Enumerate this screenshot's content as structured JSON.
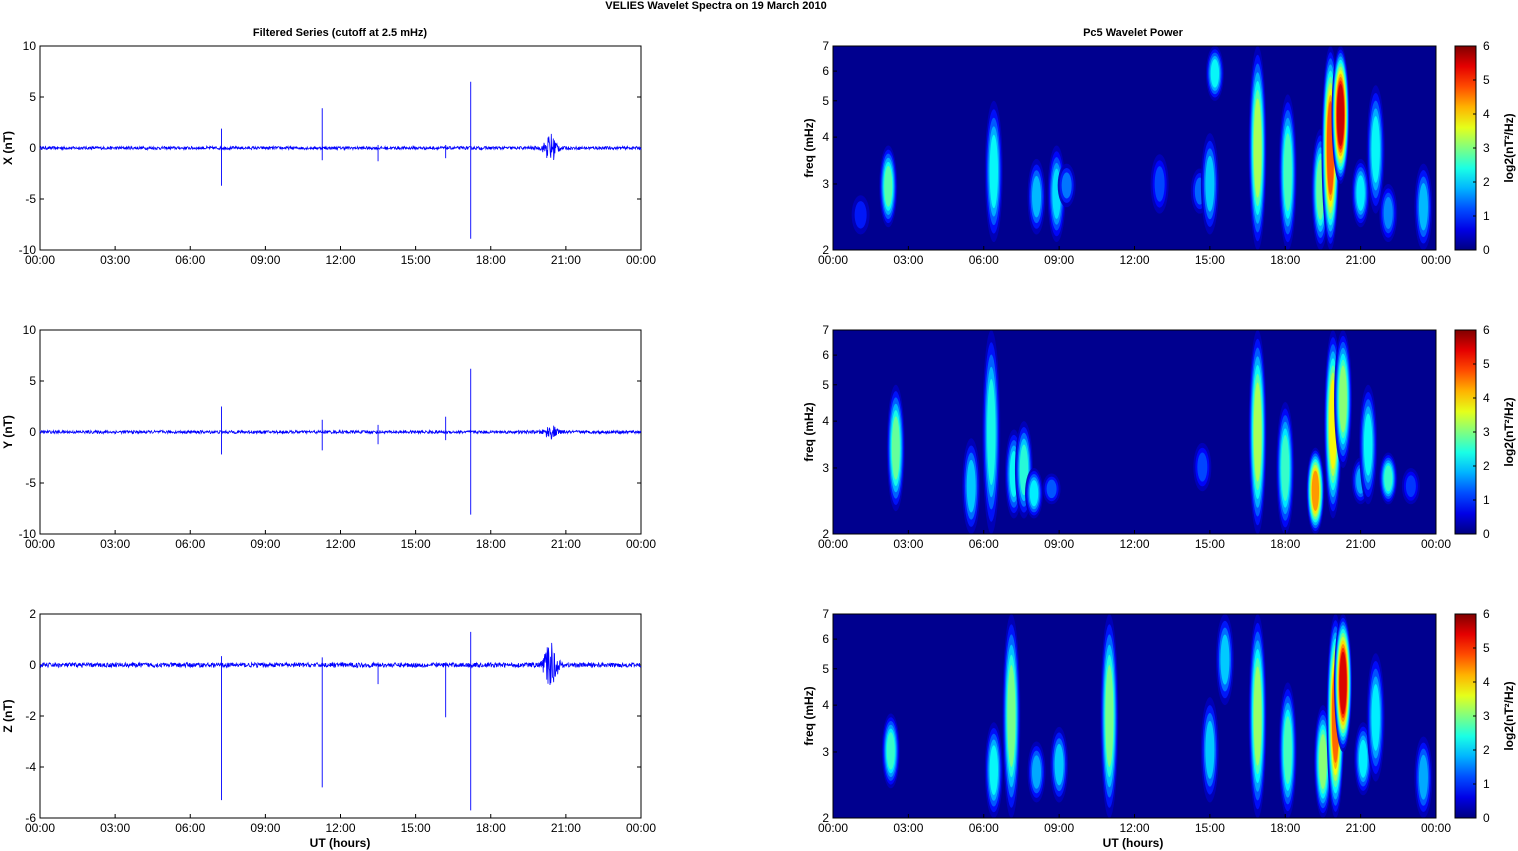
{
  "figure": {
    "title": "VELIES Wavelet Spectra on 19 March     2010",
    "left_title": "Filtered Series (cutoff at 2.5 mHz)",
    "right_title": "Pc5 Wavelet Power",
    "xlabel": "UT (hours)"
  },
  "colors": {
    "trace": "#0000ff",
    "background_low": "#00008f",
    "axis": "#000000"
  },
  "chart_data": [
    {
      "type": "line",
      "ylabel": "X (nT)",
      "xlim": [
        0,
        24
      ],
      "ylim": [
        -10,
        10
      ],
      "yticks": [
        -10,
        -5,
        0,
        5,
        10
      ],
      "xtick_labels": [
        "00:00",
        "03:00",
        "06:00",
        "09:00",
        "12:00",
        "15:00",
        "18:00",
        "21:00",
        "00:00"
      ],
      "noise_amplitude": 0.15,
      "spikes": [
        {
          "t": 7.25,
          "hi": 1.9,
          "lo": -3.7
        },
        {
          "t": 11.27,
          "hi": 3.9,
          "lo": -1.2
        },
        {
          "t": 13.5,
          "hi": 0.3,
          "lo": -1.3
        },
        {
          "t": 16.2,
          "hi": 0.3,
          "lo": -1.0
        },
        {
          "t": 17.2,
          "hi": 6.5,
          "lo": -8.9
        }
      ],
      "bursts": [
        {
          "t": 20.4,
          "amplitude": 1.4
        }
      ]
    },
    {
      "type": "line",
      "ylabel": "Y (nT)",
      "xlim": [
        0,
        24
      ],
      "ylim": [
        -10,
        10
      ],
      "yticks": [
        -10,
        -5,
        0,
        5,
        10
      ],
      "xtick_labels": [
        "00:00",
        "03:00",
        "06:00",
        "09:00",
        "12:00",
        "15:00",
        "18:00",
        "21:00",
        "00:00"
      ],
      "noise_amplitude": 0.15,
      "spikes": [
        {
          "t": 7.25,
          "hi": 2.5,
          "lo": -2.2
        },
        {
          "t": 11.27,
          "hi": 1.2,
          "lo": -1.8
        },
        {
          "t": 13.5,
          "hi": 0.7,
          "lo": -1.2
        },
        {
          "t": 16.2,
          "hi": 1.5,
          "lo": -0.8
        },
        {
          "t": 17.2,
          "hi": 6.2,
          "lo": -8.1
        }
      ],
      "bursts": [
        {
          "t": 20.4,
          "amplitude": 0.6
        }
      ]
    },
    {
      "type": "line",
      "ylabel": "Z (nT)",
      "xlim": [
        0,
        24
      ],
      "ylim": [
        -6,
        2
      ],
      "yticks": [
        -6,
        -4,
        -2,
        0,
        2
      ],
      "xtick_labels": [
        "00:00",
        "03:00",
        "06:00",
        "09:00",
        "12:00",
        "15:00",
        "18:00",
        "21:00",
        "00:00"
      ],
      "noise_amplitude": 0.09,
      "spikes": [
        {
          "t": 7.25,
          "hi": 0.35,
          "lo": -5.3
        },
        {
          "t": 11.27,
          "hi": 0.3,
          "lo": -4.8
        },
        {
          "t": 13.5,
          "hi": 0.1,
          "lo": -0.75
        },
        {
          "t": 16.2,
          "hi": 0.1,
          "lo": -2.05
        },
        {
          "t": 17.2,
          "hi": 1.3,
          "lo": -5.7
        }
      ],
      "bursts": [
        {
          "t": 20.4,
          "amplitude": 0.9
        }
      ]
    },
    {
      "type": "heatmap",
      "ylabel": "freq (mHz)",
      "xlim": [
        0,
        24
      ],
      "ylim": [
        2,
        7
      ],
      "yscale": "log",
      "yticks": [
        2,
        3,
        4,
        5,
        6,
        7
      ],
      "xtick_labels": [
        "00:00",
        "03:00",
        "06:00",
        "09:00",
        "12:00",
        "15:00",
        "18:00",
        "21:00",
        "00:00"
      ],
      "colorbar": {
        "label": "log2(nT²/Hz)",
        "range": [
          0,
          6
        ],
        "ticks": [
          0,
          1,
          2,
          3,
          4,
          5,
          6
        ]
      },
      "blobs": [
        {
          "t": 2.2,
          "f0": 2.3,
          "f1": 3.8,
          "peak": 2.8
        },
        {
          "t": 1.1,
          "f0": 2.2,
          "f1": 2.8,
          "peak": 0.9
        },
        {
          "t": 6.4,
          "f0": 2.1,
          "f1": 5.0,
          "peak": 2.3
        },
        {
          "t": 8.1,
          "f0": 2.2,
          "f1": 3.5,
          "peak": 1.9
        },
        {
          "t": 8.9,
          "f0": 2.1,
          "f1": 3.8,
          "peak": 2.1
        },
        {
          "t": 9.3,
          "f0": 2.6,
          "f1": 3.4,
          "peak": 1.5
        },
        {
          "t": 13.0,
          "f0": 2.5,
          "f1": 3.6,
          "peak": 1.2
        },
        {
          "t": 14.6,
          "f0": 2.5,
          "f1": 3.3,
          "peak": 1.4
        },
        {
          "t": 15.0,
          "f0": 2.2,
          "f1": 4.1,
          "peak": 2.0
        },
        {
          "t": 15.2,
          "f0": 5.0,
          "f1": 7.0,
          "peak": 2.3
        },
        {
          "t": 16.9,
          "f0": 2.0,
          "f1": 7.0,
          "peak": 3.3
        },
        {
          "t": 18.1,
          "f0": 2.0,
          "f1": 5.2,
          "peak": 2.7
        },
        {
          "t": 19.4,
          "f0": 2.0,
          "f1": 4.2,
          "peak": 2.9
        },
        {
          "t": 19.8,
          "f0": 2.0,
          "f1": 7.0,
          "peak": 4.8
        },
        {
          "t": 20.2,
          "f0": 3.0,
          "f1": 7.0,
          "peak": 5.6
        },
        {
          "t": 21.0,
          "f0": 2.3,
          "f1": 3.5,
          "peak": 2.2
        },
        {
          "t": 21.6,
          "f0": 2.5,
          "f1": 5.5,
          "peak": 2.3
        },
        {
          "t": 22.1,
          "f0": 2.1,
          "f1": 3.0,
          "peak": 1.6
        },
        {
          "t": 23.5,
          "f0": 2.0,
          "f1": 3.4,
          "peak": 1.9
        }
      ]
    },
    {
      "type": "heatmap",
      "ylabel": "freq (mHz)",
      "xlim": [
        0,
        24
      ],
      "ylim": [
        2,
        7
      ],
      "yscale": "log",
      "yticks": [
        2,
        3,
        4,
        5,
        6,
        7
      ],
      "xtick_labels": [
        "00:00",
        "03:00",
        "06:00",
        "09:00",
        "12:00",
        "15:00",
        "18:00",
        "21:00",
        "00:00"
      ],
      "colorbar": {
        "label": "log2(nT²/Hz)",
        "range": [
          0,
          6
        ],
        "ticks": [
          0,
          1,
          2,
          3,
          4,
          5,
          6
        ]
      },
      "blobs": [
        {
          "t": 2.5,
          "f0": 2.3,
          "f1": 5.0,
          "peak": 2.9
        },
        {
          "t": 5.5,
          "f0": 2.0,
          "f1": 3.6,
          "peak": 2.0
        },
        {
          "t": 6.3,
          "f0": 2.0,
          "f1": 7.0,
          "peak": 2.4
        },
        {
          "t": 7.2,
          "f0": 2.2,
          "f1": 3.8,
          "peak": 2.3
        },
        {
          "t": 7.6,
          "f0": 2.2,
          "f1": 4.0,
          "peak": 2.5
        },
        {
          "t": 8.0,
          "f0": 2.2,
          "f1": 3.0,
          "peak": 2.2
        },
        {
          "t": 8.7,
          "f0": 2.4,
          "f1": 2.9,
          "peak": 1.3
        },
        {
          "t": 14.7,
          "f0": 2.6,
          "f1": 3.5,
          "peak": 1.2
        },
        {
          "t": 16.9,
          "f0": 2.0,
          "f1": 7.0,
          "peak": 3.3
        },
        {
          "t": 18.0,
          "f0": 2.0,
          "f1": 4.5,
          "peak": 2.6
        },
        {
          "t": 19.2,
          "f0": 2.0,
          "f1": 3.4,
          "peak": 4.4
        },
        {
          "t": 19.9,
          "f0": 2.2,
          "f1": 7.0,
          "peak": 3.8
        },
        {
          "t": 20.3,
          "f0": 3.0,
          "f1": 7.0,
          "peak": 3.1
        },
        {
          "t": 21.0,
          "f0": 2.4,
          "f1": 3.2,
          "peak": 1.8
        },
        {
          "t": 21.3,
          "f0": 2.4,
          "f1": 5.0,
          "peak": 2.3
        },
        {
          "t": 22.1,
          "f0": 2.4,
          "f1": 3.3,
          "peak": 2.6
        },
        {
          "t": 23.0,
          "f0": 2.4,
          "f1": 3.0,
          "peak": 1.1
        }
      ]
    },
    {
      "type": "heatmap",
      "ylabel": "freq (mHz)",
      "xlim": [
        0,
        24
      ],
      "ylim": [
        2,
        7
      ],
      "yscale": "log",
      "yticks": [
        2,
        3,
        4,
        5,
        6,
        7
      ],
      "xtick_labels": [
        "00:00",
        "03:00",
        "06:00",
        "09:00",
        "12:00",
        "15:00",
        "18:00",
        "21:00",
        "00:00"
      ],
      "colorbar": {
        "label": "log2(nT²/Hz)",
        "range": [
          0,
          6
        ],
        "ticks": [
          0,
          1,
          2,
          3,
          4,
          5,
          6
        ]
      },
      "blobs": [
        {
          "t": 2.3,
          "f0": 2.4,
          "f1": 3.8,
          "peak": 2.6
        },
        {
          "t": 6.4,
          "f0": 2.0,
          "f1": 3.6,
          "peak": 2.3
        },
        {
          "t": 7.1,
          "f0": 2.0,
          "f1": 7.0,
          "peak": 3.0
        },
        {
          "t": 11.0,
          "f0": 2.0,
          "f1": 7.0,
          "peak": 3.0
        },
        {
          "t": 8.1,
          "f0": 2.2,
          "f1": 3.2,
          "peak": 1.8
        },
        {
          "t": 9.0,
          "f0": 2.2,
          "f1": 3.5,
          "peak": 2.0
        },
        {
          "t": 15.0,
          "f0": 2.2,
          "f1": 4.2,
          "peak": 2.0
        },
        {
          "t": 15.6,
          "f0": 4.0,
          "f1": 7.0,
          "peak": 2.0
        },
        {
          "t": 16.9,
          "f0": 2.0,
          "f1": 7.0,
          "peak": 3.2
        },
        {
          "t": 18.1,
          "f0": 2.0,
          "f1": 4.6,
          "peak": 2.7
        },
        {
          "t": 19.5,
          "f0": 2.0,
          "f1": 4.0,
          "peak": 3.1
        },
        {
          "t": 20.0,
          "f0": 2.0,
          "f1": 7.0,
          "peak": 4.7
        },
        {
          "t": 20.3,
          "f0": 3.0,
          "f1": 7.0,
          "peak": 5.5
        },
        {
          "t": 21.1,
          "f0": 2.3,
          "f1": 3.6,
          "peak": 2.2
        },
        {
          "t": 21.6,
          "f0": 2.5,
          "f1": 5.5,
          "peak": 2.2
        },
        {
          "t": 23.5,
          "f0": 2.0,
          "f1": 3.3,
          "peak": 1.8
        }
      ]
    }
  ]
}
